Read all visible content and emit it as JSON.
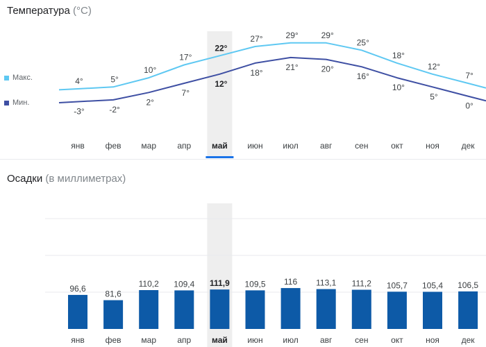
{
  "temperature": {
    "title": "Температура",
    "unit": "(°C)",
    "legend": [
      {
        "label": "Макс.",
        "color": "#5ec8f2"
      },
      {
        "label": "Мин.",
        "color": "#3e4fa3"
      }
    ]
  },
  "precipitation": {
    "title": "Осадки",
    "unit": "(в миллиметрах)"
  },
  "selected_month_index": 4,
  "chart_data": [
    {
      "type": "line",
      "title": "Температура (°C)",
      "categories": [
        "янв",
        "фев",
        "мар",
        "апр",
        "май",
        "июн",
        "июл",
        "авг",
        "сен",
        "окт",
        "ноя",
        "дек"
      ],
      "series": [
        {
          "name": "Макс.",
          "color": "#5ec8f2",
          "values": [
            4,
            5,
            10,
            17,
            22,
            27,
            29,
            29,
            25,
            18,
            12,
            7
          ],
          "labels": [
            "4°",
            "5°",
            "10°",
            "17°",
            "22°",
            "27°",
            "29°",
            "29°",
            "25°",
            "18°",
            "12°",
            "7°"
          ]
        },
        {
          "name": "Мин.",
          "color": "#3e4fa3",
          "values": [
            -3,
            -2,
            2,
            7,
            12,
            18,
            21,
            20,
            16,
            10,
            5,
            0
          ],
          "labels": [
            "-3°",
            "-2°",
            "2°",
            "7°",
            "12°",
            "18°",
            "21°",
            "20°",
            "16°",
            "10°",
            "5°",
            "0°"
          ]
        }
      ],
      "grid": false
    },
    {
      "type": "bar",
      "title": "Осадки (в миллиметрах)",
      "categories": [
        "янв",
        "фев",
        "мар",
        "апр",
        "май",
        "июн",
        "июл",
        "авг",
        "сен",
        "окт",
        "ноя",
        "дек"
      ],
      "values": [
        96.6,
        81.6,
        110.2,
        109.4,
        111.9,
        109.5,
        116,
        113.1,
        111.2,
        105.7,
        105.4,
        106.5
      ],
      "labels": [
        "96,6",
        "81,6",
        "110,2",
        "109,4",
        "111,9",
        "109,5",
        "116",
        "113,1",
        "111,2",
        "105,7",
        "105,4",
        "106,5"
      ],
      "color": "#0d5aa7",
      "grid": true
    }
  ]
}
